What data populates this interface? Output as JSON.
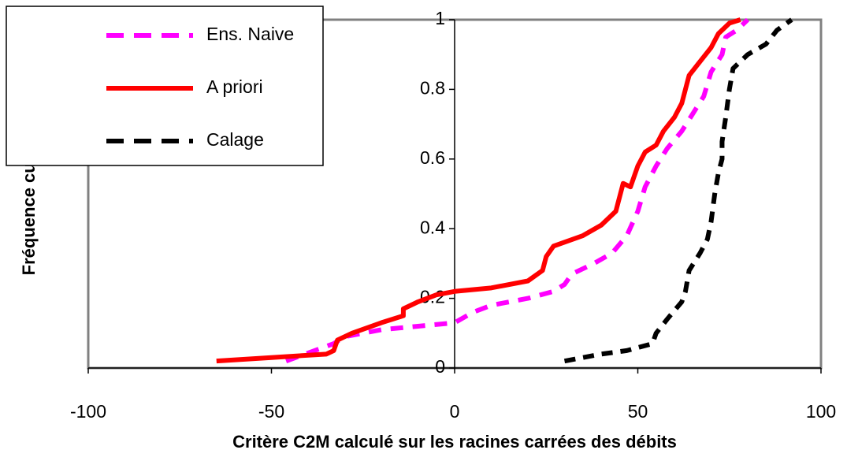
{
  "chart_data": {
    "type": "line",
    "xlabel": "Critère C2M calculé sur les racines carrées des débits",
    "ylabel": "Fréquence cumulée",
    "xlim": [
      -100,
      100
    ],
    "xticks": [
      -100,
      -50,
      0,
      50,
      100
    ],
    "ylim": [
      0,
      1
    ],
    "yticks": [
      0,
      0.2,
      0.4,
      0.6,
      0.8,
      1
    ],
    "series": [
      {
        "name": "Ens. Naive",
        "color": "#ff00ff",
        "style": "dashed",
        "x": [
          -46,
          -33,
          -30,
          -20,
          -10,
          0,
          5,
          10,
          20,
          27,
          30,
          32,
          38,
          43,
          47,
          50,
          52,
          55,
          58,
          62,
          65,
          68,
          70,
          73,
          74,
          77,
          80
        ],
        "values": [
          0.02,
          0.07,
          0.09,
          0.11,
          0.12,
          0.13,
          0.16,
          0.18,
          0.2,
          0.22,
          0.24,
          0.27,
          0.3,
          0.33,
          0.38,
          0.45,
          0.52,
          0.58,
          0.63,
          0.68,
          0.73,
          0.78,
          0.85,
          0.9,
          0.95,
          0.97,
          1.0
        ]
      },
      {
        "name": "A priori",
        "color": "#ff0000",
        "style": "solid",
        "x": [
          -65,
          -50,
          -35,
          -33,
          -32,
          -28,
          -20,
          -14,
          -14,
          -10,
          -5,
          0,
          10,
          20,
          24,
          25,
          27,
          35,
          40,
          44,
          46,
          48,
          50,
          52,
          55,
          57,
          60,
          62,
          63,
          64,
          67,
          70,
          72,
          75,
          78
        ],
        "values": [
          0.02,
          0.03,
          0.04,
          0.05,
          0.08,
          0.1,
          0.13,
          0.15,
          0.17,
          0.19,
          0.21,
          0.22,
          0.23,
          0.25,
          0.28,
          0.32,
          0.35,
          0.38,
          0.41,
          0.45,
          0.53,
          0.52,
          0.58,
          0.62,
          0.64,
          0.68,
          0.72,
          0.76,
          0.8,
          0.84,
          0.88,
          0.92,
          0.96,
          0.99,
          1.0
        ]
      },
      {
        "name": "Calage",
        "color": "#000000",
        "style": "dashed",
        "x": [
          30,
          40,
          47,
          54,
          55,
          58,
          62,
          63,
          64,
          67,
          69,
          70,
          71,
          72,
          73,
          73,
          74,
          75,
          76,
          80,
          85,
          88,
          92
        ],
        "values": [
          0.02,
          0.04,
          0.05,
          0.07,
          0.1,
          0.14,
          0.19,
          0.22,
          0.28,
          0.33,
          0.37,
          0.42,
          0.5,
          0.56,
          0.6,
          0.65,
          0.72,
          0.8,
          0.86,
          0.9,
          0.93,
          0.97,
          1.0
        ]
      }
    ]
  }
}
